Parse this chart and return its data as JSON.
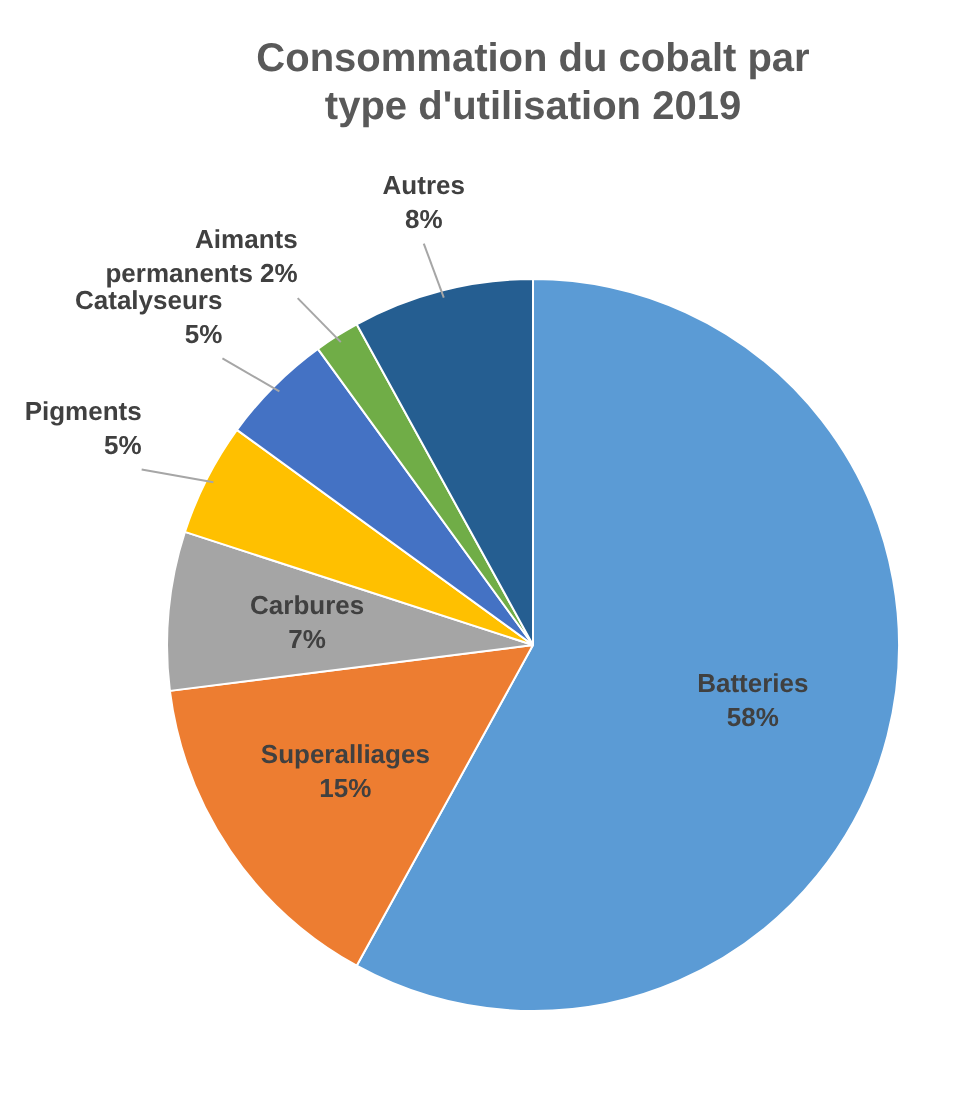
{
  "chart_data": {
    "type": "pie",
    "title": "Consommation du cobalt par type d'utilisation 2019",
    "categories": [
      "Batteries",
      "Superalliages",
      "Carbures",
      "Pigments",
      "Catalyseurs",
      "Aimants permanents",
      "Autres"
    ],
    "values": [
      58,
      15,
      7,
      5,
      5,
      2,
      8
    ],
    "value_labels": [
      "58%",
      "15%",
      "7%",
      "5%",
      "5%",
      "2%",
      "8%"
    ],
    "colors": [
      "#5b9bd5",
      "#ed7d31",
      "#a5a5a5",
      "#ffc000",
      "#4472c4",
      "#70ad47",
      "#255e91"
    ],
    "legend": false
  }
}
